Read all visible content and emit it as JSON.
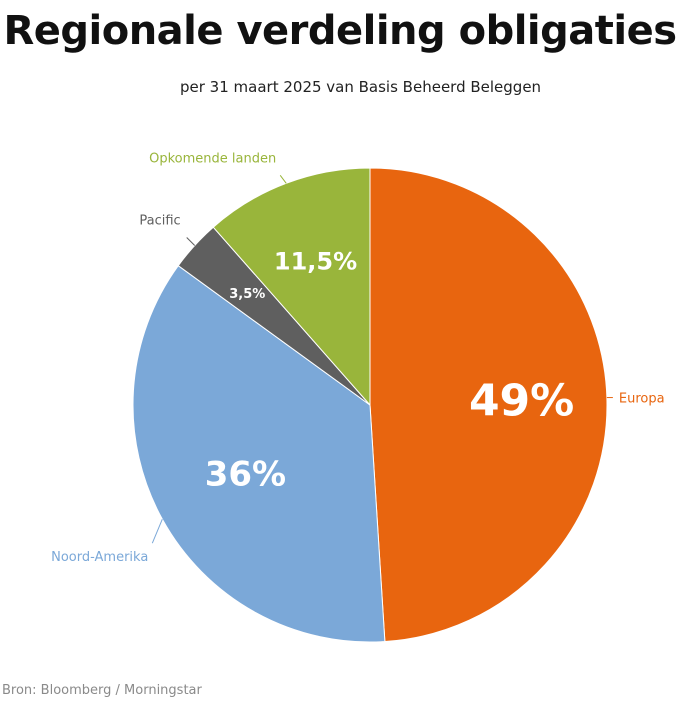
{
  "title": "Regionale verdeling obligaties",
  "subtitle": "per 31 maart 2025 van Basis Beheerd Beleggen",
  "source": "Bron: Bloomberg / Morningstar",
  "chart_data": {
    "type": "pie",
    "title": "Regionale verdeling obligaties",
    "subtitle": "per 31 maart 2025 van Basis Beheerd Beleggen",
    "start_angle": "12 o'clock",
    "direction": "clockwise",
    "slices": [
      {
        "name": "Europa",
        "value": 49,
        "value_label": "49%",
        "color": "#E8650F"
      },
      {
        "name": "Noord-Amerika",
        "value": 36,
        "value_label": "36%",
        "color": "#7BA8D8"
      },
      {
        "name": "Pacific",
        "value": 3.5,
        "value_label": "3,5%",
        "color": "#5F5F5F"
      },
      {
        "name": "Opkomende landen",
        "value": 11.5,
        "value_label": "11,5%",
        "color": "#99B53B"
      }
    ]
  }
}
